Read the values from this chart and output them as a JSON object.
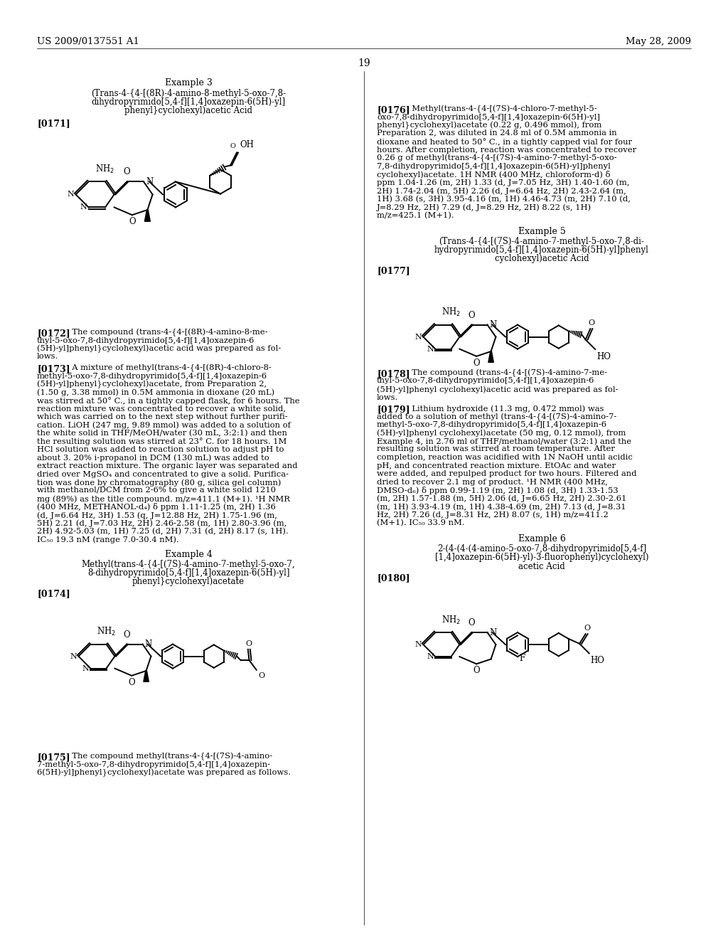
{
  "bg_color": "#ffffff",
  "header_left": "US 2009/0137551 A1",
  "header_right": "May 28, 2009",
  "page_number": "19"
}
